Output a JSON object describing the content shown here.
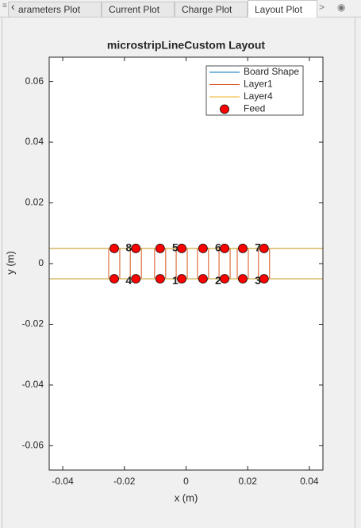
{
  "tabs": [
    "arameters Plot",
    "Current Plot",
    "Charge Plot",
    "Layout Plot"
  ],
  "active_tab": 3,
  "chart_data": {
    "type": "layout",
    "title": "microstripLineCustom Layout",
    "x_label": "x (m)",
    "y_label": "y (m)",
    "xlim": [
      -0.0444,
      0.0444
    ],
    "ylim": [
      -0.068,
      0.068
    ],
    "xticks": [
      -0.04,
      -0.02,
      0,
      0.02,
      0.04
    ],
    "yticks": [
      -0.06,
      -0.04,
      -0.02,
      0,
      0.02,
      0.04,
      0.06
    ],
    "legend": "upper right",
    "series": [
      {
        "name": "Board Shape",
        "kind": "line",
        "color": "#0072bd",
        "x": [
          -0.0444,
          0.0444,
          0.0444,
          -0.0444,
          -0.0444
        ],
        "y": [
          -0.005,
          -0.005,
          0.005,
          0.005,
          -0.005
        ]
      },
      {
        "name": "Layer1",
        "kind": "line",
        "color": "#d95319",
        "x": [
          -0.0251,
          -0.0215,
          -0.0215,
          -0.0251,
          -0.0251,
          null,
          -0.0181,
          -0.0145,
          -0.0145,
          -0.0181,
          -0.0181,
          null,
          -0.0102,
          -0.0066,
          -0.0066,
          -0.0102,
          -0.0102,
          null,
          -0.0032,
          0.0004,
          0.0004,
          -0.0032,
          -0.0032,
          null,
          0.0037,
          0.0073,
          0.0073,
          0.0037,
          0.0037,
          null,
          0.0107,
          0.0143,
          0.0143,
          0.0107,
          0.0107,
          null,
          0.0166,
          0.0202,
          0.0202,
          0.0166,
          0.0166,
          null,
          0.0235,
          0.0271,
          0.0271,
          0.0235,
          0.0235
        ],
        "y": [
          -0.005,
          -0.005,
          0.005,
          0.005,
          -0.005,
          null,
          -0.005,
          -0.005,
          0.005,
          0.005,
          -0.005,
          null,
          -0.005,
          -0.005,
          0.005,
          0.005,
          -0.005,
          null,
          -0.005,
          -0.005,
          0.005,
          0.005,
          -0.005,
          null,
          -0.005,
          -0.005,
          0.005,
          0.005,
          -0.005,
          null,
          -0.005,
          -0.005,
          0.005,
          0.005,
          -0.005,
          null,
          -0.005,
          -0.005,
          0.005,
          0.005,
          -0.005,
          null,
          -0.005,
          -0.005,
          0.005,
          0.005,
          -0.005
        ]
      },
      {
        "name": "Layer4",
        "kind": "line",
        "color": "#edb120",
        "x": [
          -0.0444,
          0.0444,
          0.0444,
          -0.0444,
          -0.0444
        ],
        "y": [
          -0.005,
          -0.005,
          0.005,
          0.005,
          -0.005
        ]
      },
      {
        "name": "Feed",
        "kind": "scatter",
        "color": "#ff0000",
        "x": [
          -0.0233,
          -0.0163,
          -0.0084,
          -0.0014,
          0.0055,
          0.0125,
          0.0184,
          0.0253,
          -0.0233,
          -0.0163,
          -0.0084,
          -0.0014,
          0.0055,
          0.0125,
          0.0184,
          0.0253
        ],
        "y": [
          0.005,
          0.005,
          0.005,
          0.005,
          0.005,
          0.005,
          0.005,
          0.005,
          -0.005,
          -0.005,
          -0.005,
          -0.005,
          -0.005,
          -0.005,
          -0.005,
          -0.005
        ]
      }
    ],
    "annotations": [
      {
        "text": "8",
        "x": -0.0186,
        "y": 0.005
      },
      {
        "text": "5",
        "x": -0.0035,
        "y": 0.005
      },
      {
        "text": "6",
        "x": 0.0104,
        "y": 0.005
      },
      {
        "text": "7",
        "x": 0.0233,
        "y": 0.005
      },
      {
        "text": "4",
        "x": -0.0186,
        "y": -0.005
      },
      {
        "text": "1",
        "x": -0.0035,
        "y": -0.005
      },
      {
        "text": "2",
        "x": 0.0104,
        "y": -0.005
      },
      {
        "text": "3",
        "x": 0.0233,
        "y": -0.005
      }
    ]
  }
}
